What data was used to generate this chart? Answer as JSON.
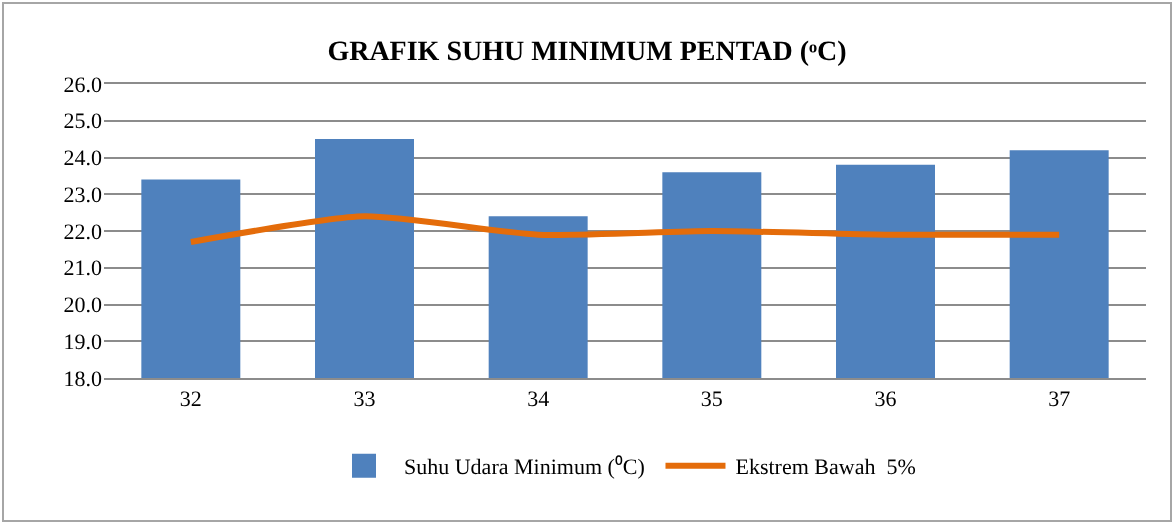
{
  "chart_data": {
    "type": "bar",
    "title": "GRAFIK SUHU MINIMUM PENTAD (ᵒC)",
    "categories": [
      "32",
      "33",
      "34",
      "35",
      "36",
      "37"
    ],
    "series": [
      {
        "name": "Suhu Udara Minimum (⁰C)",
        "color": "#4f81bd",
        "values": [
          23.4,
          24.5,
          22.4,
          23.6,
          23.8,
          24.2
        ]
      },
      {
        "name": "Ekstrem Bawah  5%",
        "type": "line",
        "color": "#e46c0a",
        "values": [
          21.7,
          22.4,
          21.9,
          22.0,
          21.9,
          21.9
        ]
      }
    ],
    "ylim": [
      18,
      26
    ],
    "yticks": [
      {
        "value": 18,
        "label": "18.0"
      },
      {
        "value": 19,
        "label": "19.0"
      },
      {
        "value": 20,
        "label": "20.0"
      },
      {
        "value": 21,
        "label": "21.0"
      },
      {
        "value": 22,
        "label": "22.0"
      },
      {
        "value": 23,
        "label": "23.0"
      },
      {
        "value": 24,
        "label": "24.0"
      },
      {
        "value": 25,
        "label": "25.0"
      },
      {
        "value": 26,
        "label": "26.0"
      }
    ],
    "grid": "y",
    "legend": "bottom",
    "marker": "none",
    "line_style": "solid"
  }
}
